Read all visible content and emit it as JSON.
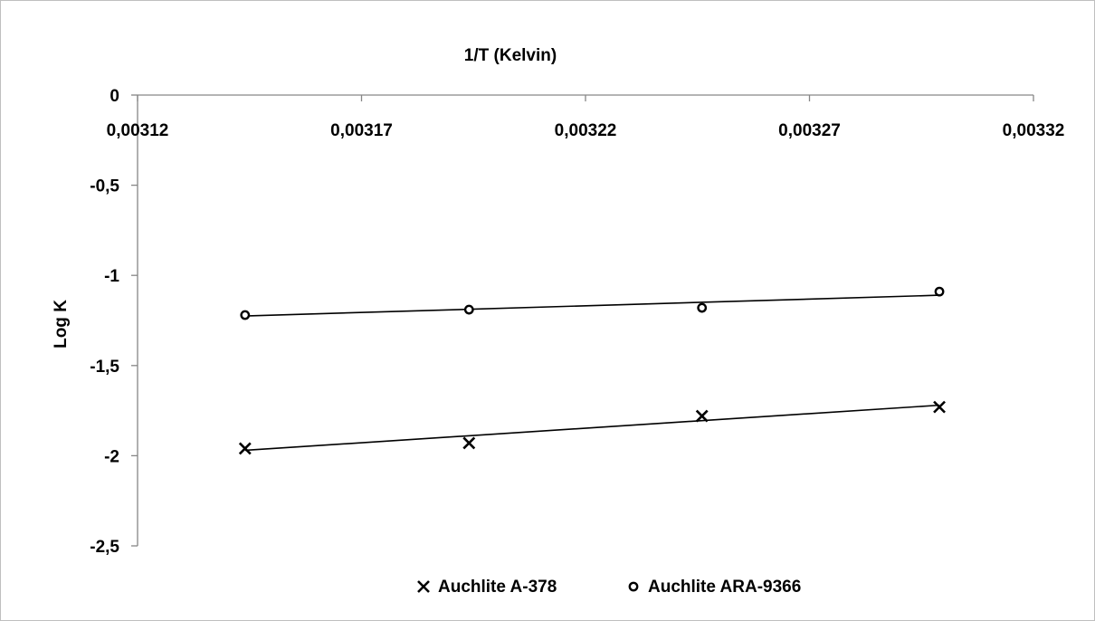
{
  "chart_data": {
    "type": "scatter",
    "title": "",
    "xlabel": "1/T (Kelvin)",
    "ylabel": "Log K",
    "xlim": [
      0.00312,
      0.00332
    ],
    "ylim": [
      -2.5,
      0
    ],
    "x_ticks": [
      "0,00312",
      "0,00317",
      "0,00322",
      "0,00327",
      "0,00332"
    ],
    "y_ticks": [
      "0",
      "-0,5",
      "-1",
      "-1,5",
      "-2",
      "-2,5"
    ],
    "x_axis_position": "top",
    "grid": false,
    "legend_position": "bottom",
    "series": [
      {
        "name": "Auchlite A-378",
        "marker": "x",
        "x": [
          0.003144,
          0.003194,
          0.003246,
          0.003299
        ],
        "y": [
          -1.96,
          -1.93,
          -1.78,
          -1.73
        ],
        "trendline": {
          "x": [
            0.003144,
            0.003299
          ],
          "y": [
            -1.97,
            -1.72
          ]
        }
      },
      {
        "name": "Auchlite ARA-9366",
        "marker": "circle",
        "x": [
          0.003144,
          0.003194,
          0.003246,
          0.003299
        ],
        "y": [
          -1.22,
          -1.19,
          -1.18,
          -1.09
        ],
        "trendline": {
          "x": [
            0.003144,
            0.003299
          ],
          "y": [
            -1.225,
            -1.11
          ]
        }
      }
    ]
  }
}
